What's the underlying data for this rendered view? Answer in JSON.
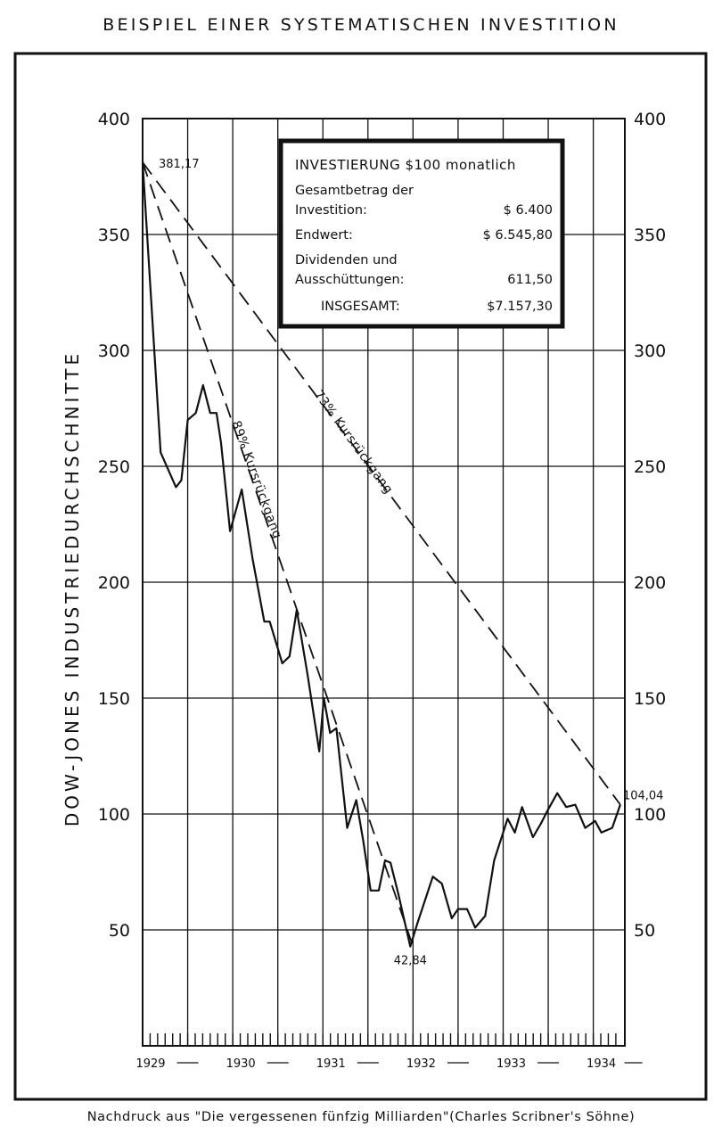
{
  "page": {
    "title": "BEISPIEL EINER SYSTEMATISCHEN INVESTITION",
    "footer": "Nachdruck aus \"Die vergessenen fünfzig Milliarden\"(Charles Scribner's Söhne)"
  },
  "infobox": {
    "title": "INVESTIERUNG $100 monatlich",
    "rows": [
      {
        "label1": "Gesamtbetrag der",
        "label2": "Investition:",
        "value": "$ 6.400"
      },
      {
        "label1": "Endwert:",
        "label2": "",
        "value": "$ 6.545,80"
      },
      {
        "label1": "Dividenden und",
        "label2": "Ausschüttungen:",
        "value": "611,50"
      },
      {
        "label1": "INSGESAMT:",
        "label2": "",
        "value": "$7.157,30"
      }
    ]
  },
  "chart_data": {
    "type": "line",
    "title": "",
    "xlabel": "",
    "ylabel": "DOW-JONES INDUSTRIEDURCHSCHNITTE",
    "ylim": [
      0,
      400
    ],
    "xlim": [
      1929.75,
      1935.1
    ],
    "grid": true,
    "yticks": [
      50,
      100,
      150,
      200,
      250,
      300,
      350,
      400
    ],
    "ytick_labels": [
      "50",
      "100",
      "150",
      "200",
      "250",
      "300",
      "350",
      "400"
    ],
    "xticks": [
      1929.75,
      1930.25,
      1930.75,
      1931.25,
      1931.75,
      1932.25,
      1932.75,
      1933.25,
      1933.75,
      1934.25,
      1934.75
    ],
    "xtick_labels": [
      "1929",
      "",
      "1930",
      "",
      "1931",
      "",
      "1932",
      "",
      "1933",
      "",
      "1934"
    ],
    "series": [
      {
        "name": "",
        "style": "solid",
        "x": [
          1929.75,
          1929.95,
          1930.12,
          1930.18,
          1930.25,
          1930.34,
          1930.42,
          1930.5,
          1930.57,
          1930.62,
          1930.72,
          1930.85,
          1930.97,
          1931.1,
          1931.16,
          1931.3,
          1931.38,
          1931.46,
          1931.58,
          1931.71,
          1931.76,
          1931.83,
          1931.9,
          1932.02,
          1932.12,
          1932.2,
          1932.28,
          1932.37,
          1932.44,
          1932.5,
          1932.59,
          1932.72,
          1932.8,
          1932.97,
          1933.07,
          1933.18,
          1933.25,
          1933.35,
          1933.44,
          1933.55,
          1933.65,
          1933.8,
          1933.88,
          1933.96,
          1934.08,
          1934.17,
          1934.25,
          1934.35,
          1934.45,
          1934.55,
          1934.66,
          1934.77,
          1934.84,
          1934.96,
          1935.05
        ],
        "y": [
          381.17,
          256,
          241,
          244,
          270,
          273,
          285,
          273,
          273,
          260,
          222,
          240,
          210,
          183,
          183,
          165,
          168,
          188,
          160,
          127,
          150,
          135,
          137,
          94,
          106,
          88,
          67,
          67,
          80,
          79,
          65,
          42.84,
          53,
          73,
          70,
          55,
          59,
          59,
          51,
          56,
          80,
          98,
          92,
          103,
          90,
          96,
          102,
          109,
          103,
          104,
          94,
          97,
          92,
          94,
          104.04
        ]
      },
      {
        "name": "89% Kursrückgang",
        "style": "dashed",
        "x": [
          1929.75,
          1932.75
        ],
        "y": [
          381.17,
          42.84
        ]
      },
      {
        "name": "73% Kursrückgang",
        "style": "dashed",
        "x": [
          1929.75,
          1935.05
        ],
        "y": [
          381.17,
          104.04
        ]
      }
    ],
    "annotations": [
      {
        "text": "381,17",
        "x": 1929.75,
        "y": 381.17
      },
      {
        "text": "42,84",
        "x": 1932.72,
        "y": 42.84
      },
      {
        "text": "104,04",
        "x": 1935.05,
        "y": 104.04
      }
    ]
  }
}
